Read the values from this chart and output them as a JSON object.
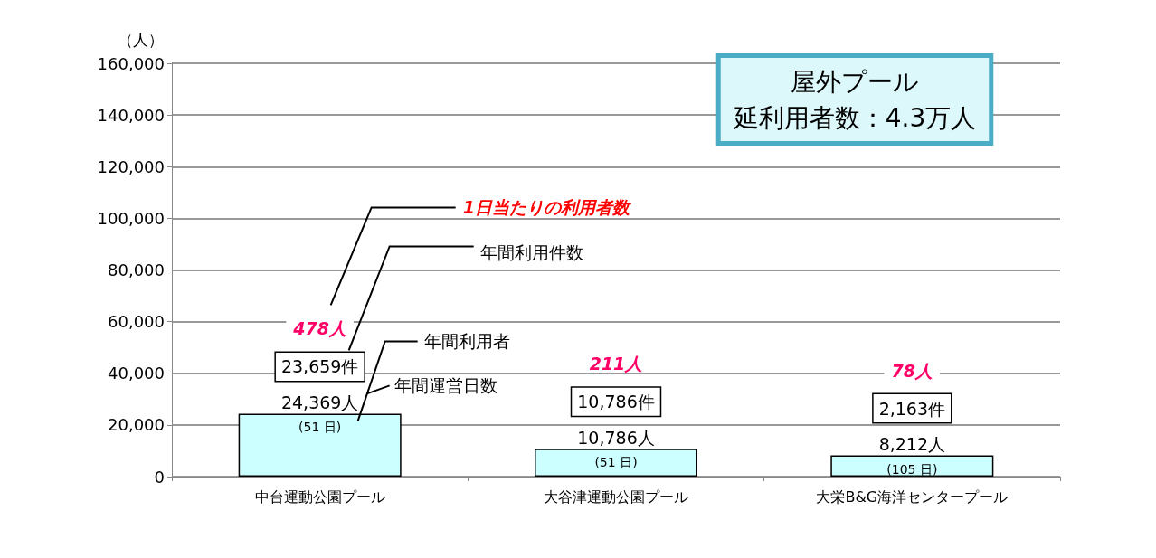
{
  "chart_data": {
    "type": "bar",
    "ylabel": "（人）",
    "categories": [
      "中台運動公園プール",
      "大谷津運動公園プール",
      "大栄B&G海洋センタープール"
    ],
    "values": [
      24369,
      10786,
      8212
    ],
    "value_labels": [
      "24,369人",
      "10,786人",
      "8,212人"
    ],
    "color": "#ccffff",
    "ylim": [
      0,
      160000
    ],
    "yticks": [
      0,
      {
        "value": 20000,
        "label": "20,000"
      },
      {
        "value": 40000,
        "label": "40,000"
      },
      {
        "value": 60000,
        "label": "60,000"
      },
      {
        "value": 80000,
        "label": "80,000"
      },
      {
        "value": 100000,
        "label": "100,000"
      },
      {
        "value": 120000,
        "label": "120,000"
      },
      {
        "value": 140000,
        "label": "140,000"
      },
      {
        "value": 160000,
        "label": "160,000"
      }
    ],
    "grid": "y",
    "annotations": [
      "1日当たりの利用者数",
      "年間利用件数",
      "年間利用者",
      "年間運営日数",
      "屋外プール",
      "延利用者数：4.3万人",
      "23,659件",
      "478人",
      "10,786件",
      "211人",
      "2,163件",
      "78人",
      {
        "text": "(51 日)",
        "x": "中台運動公園プール",
        "y": 24369
      },
      {
        "text": "(51 日)",
        "x": "大谷津運動公園プール",
        "y": 10786
      },
      {
        "text": "(105 日)",
        "x": "大栄B&G海洋センタープール",
        "y": 8212
      }
    ]
  }
}
